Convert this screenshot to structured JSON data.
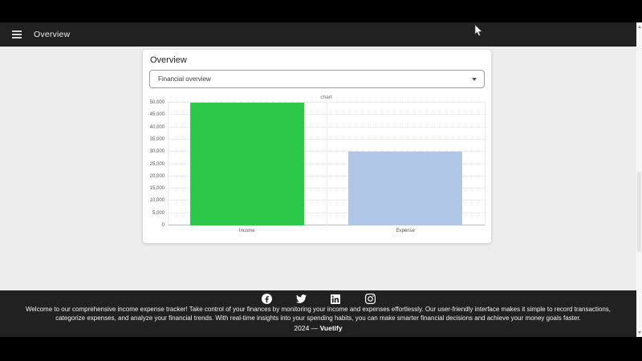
{
  "app_bar": {
    "title": "Overview"
  },
  "card": {
    "title": "Overview",
    "select": {
      "value": "Financial overview"
    }
  },
  "chart_data": {
    "type": "bar",
    "title": "chart",
    "categories": [
      "Income",
      "Expense"
    ],
    "values": [
      50000,
      30000
    ],
    "bar_colors": [
      "#2cc849",
      "#b0c6e7"
    ],
    "xlabel": "",
    "ylabel": "",
    "ylim": [
      0,
      50000
    ],
    "ytick_step": 5000,
    "ytick_labels": [
      "0",
      "5,000",
      "10,000",
      "15,000",
      "20,000",
      "25,000",
      "30,000",
      "35,000",
      "40,000",
      "45,000",
      "50,000"
    ],
    "grid": true,
    "legend": false
  },
  "footer": {
    "social_icons": [
      "facebook-icon",
      "twitter-icon",
      "linkedin-icon",
      "instagram-icon"
    ],
    "description": "Welcome to our comprehensive income expense tracker! Take control of your finances by monitoring your income and expenses effortlessly. Our user-friendly interface makes it simple to record transactions, categorize expenses, and analyze your financial trends. With real-time insights into your spending habits, you can make smarter financial decisions and achieve your money goals faster.",
    "copyright_prefix": "2024 —",
    "brand": "Vuetify"
  },
  "colors": {
    "app_bar_bg": "#212121",
    "content_bg": "#ededed",
    "footer_bg": "#212121",
    "income_bar": "#2cc849",
    "expense_bar": "#b0c6e7",
    "letterbox": "#000000"
  }
}
